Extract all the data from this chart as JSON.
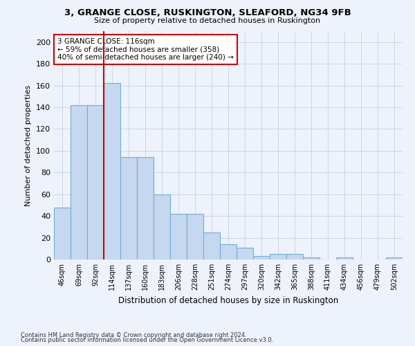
{
  "title": "3, GRANGE CLOSE, RUSKINGTON, SLEAFORD, NG34 9FB",
  "subtitle": "Size of property relative to detached houses in Ruskington",
  "xlabel": "Distribution of detached houses by size in Ruskington",
  "ylabel": "Number of detached properties",
  "bar_color": "#c5d8f0",
  "bar_edge_color": "#6baed6",
  "categories": [
    "46sqm",
    "69sqm",
    "92sqm",
    "114sqm",
    "137sqm",
    "160sqm",
    "183sqm",
    "206sqm",
    "228sqm",
    "251sqm",
    "274sqm",
    "297sqm",
    "320sqm",
    "342sqm",
    "365sqm",
    "388sqm",
    "411sqm",
    "434sqm",
    "456sqm",
    "479sqm",
    "502sqm"
  ],
  "values": [
    48,
    142,
    142,
    162,
    94,
    94,
    60,
    42,
    42,
    25,
    14,
    11,
    3,
    5,
    5,
    2,
    0,
    2,
    0,
    0,
    2
  ],
  "ylim": [
    0,
    210
  ],
  "yticks": [
    0,
    20,
    40,
    60,
    80,
    100,
    120,
    140,
    160,
    180,
    200
  ],
  "property_line_color": "#cc0000",
  "annotation_line1": "3 GRANGE CLOSE: 116sqm",
  "annotation_line2": "← 59% of detached houses are smaller (358)",
  "annotation_line3": "40% of semi-detached houses are larger (240) →",
  "annotation_box_color": "#ffffff",
  "annotation_box_edge": "#cc0000",
  "footnote1": "Contains HM Land Registry data © Crown copyright and database right 2024.",
  "footnote2": "Contains public sector information licensed under the Open Government Licence v3.0.",
  "background_color": "#eef2fb",
  "grid_color": "#c8cfe8"
}
